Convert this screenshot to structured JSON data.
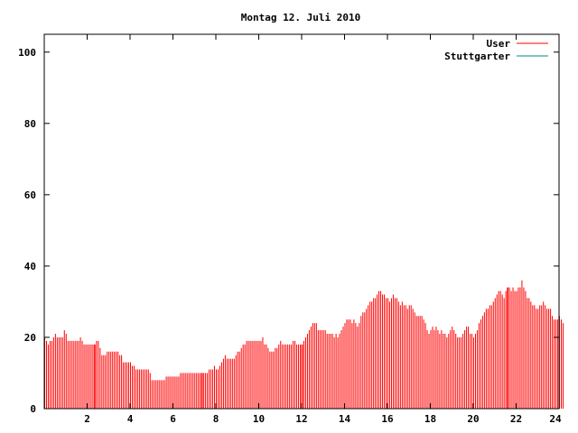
{
  "chart_data": {
    "type": "bar",
    "title": "Montag 12. Juli 2010",
    "xlabel": "",
    "ylabel": "",
    "xlim": [
      0,
      24
    ],
    "ylim": [
      0,
      105
    ],
    "x_ticks": [
      2,
      4,
      6,
      8,
      10,
      12,
      14,
      16,
      18,
      20,
      22,
      24
    ],
    "y_ticks": [
      0,
      20,
      40,
      60,
      80,
      100
    ],
    "grid": false,
    "legend_position": "top-right",
    "bar_interval_minutes": 5,
    "series": [
      {
        "name": "User",
        "color": "#ff0000",
        "values": [
          20,
          19,
          18,
          19,
          19,
          20,
          21,
          20,
          20,
          20,
          20,
          22,
          21,
          19,
          19,
          19,
          19,
          19,
          19,
          19,
          20,
          19,
          18,
          18,
          18,
          18,
          18,
          18,
          18,
          19,
          19,
          17,
          15,
          15,
          15,
          16,
          16,
          16,
          16,
          16,
          16,
          16,
          15,
          15,
          13,
          13,
          13,
          13,
          13,
          12,
          12,
          11,
          11,
          11,
          11,
          11,
          11,
          11,
          11,
          10,
          8,
          8,
          8,
          8,
          8,
          8,
          8,
          8,
          9,
          9,
          9,
          9,
          9,
          9,
          9,
          9,
          10,
          10,
          10,
          10,
          10,
          10,
          10,
          10,
          10,
          10,
          10,
          10,
          10,
          10,
          10,
          10,
          11,
          11,
          11,
          12,
          11,
          11,
          12,
          13,
          14,
          15,
          14,
          14,
          14,
          14,
          14,
          15,
          16,
          16,
          17,
          18,
          18,
          19,
          19,
          19,
          19,
          19,
          19,
          19,
          19,
          19,
          20,
          18,
          18,
          17,
          16,
          16,
          16,
          17,
          17,
          18,
          19,
          18,
          18,
          18,
          18,
          18,
          18,
          19,
          19,
          18,
          18,
          18,
          18,
          19,
          20,
          21,
          22,
          23,
          24,
          24,
          24,
          22,
          22,
          22,
          22,
          22,
          21,
          21,
          21,
          21,
          20,
          21,
          20,
          21,
          22,
          23,
          24,
          25,
          25,
          25,
          24,
          25,
          24,
          23,
          24,
          26,
          27,
          27,
          28,
          29,
          30,
          30,
          31,
          31,
          32,
          33,
          33,
          32,
          32,
          31,
          31,
          30,
          31,
          32,
          31,
          31,
          30,
          29,
          30,
          29,
          29,
          28,
          29,
          29,
          28,
          27,
          26,
          26,
          26,
          26,
          25,
          24,
          22,
          21,
          22,
          23,
          22,
          23,
          22,
          21,
          22,
          21,
          21,
          20,
          21,
          22,
          23,
          22,
          21,
          20,
          20,
          20,
          21,
          22,
          23,
          23,
          21,
          21,
          20,
          21,
          22,
          24,
          25,
          26,
          27,
          28,
          28,
          29,
          29,
          30,
          31,
          32,
          33,
          33,
          32,
          31,
          33,
          34,
          34,
          33,
          34,
          33,
          33,
          34,
          34,
          36,
          34,
          33,
          31,
          31,
          30,
          29,
          29,
          28,
          28,
          29,
          29,
          30,
          29,
          28,
          28,
          28,
          26,
          25,
          25,
          25,
          26,
          25,
          24
        ]
      },
      {
        "name": "Stuttgarter",
        "color": "#008b8b",
        "values": []
      }
    ]
  }
}
